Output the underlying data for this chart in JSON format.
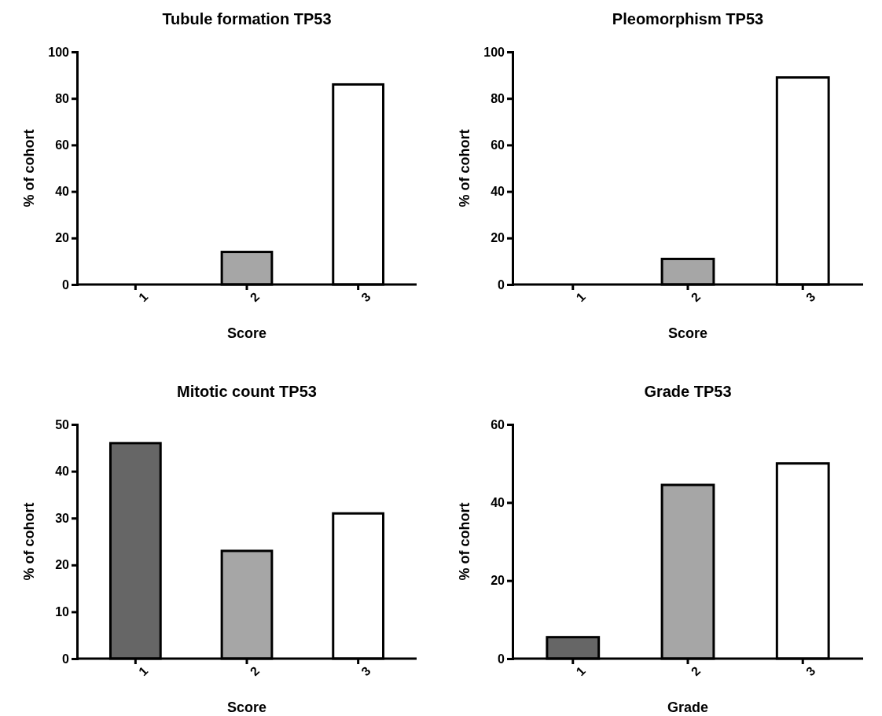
{
  "chart_data": [
    {
      "type": "bar",
      "title": "Tubule formation TP53",
      "xlabel": "Score",
      "ylabel": "% of cohort",
      "categories": [
        "1",
        "2",
        "3"
      ],
      "values": [
        0,
        14,
        86
      ],
      "colors": [
        "#666666",
        "#a6a6a6",
        "#ffffff"
      ],
      "ylim": [
        0,
        100
      ],
      "yticks": [
        0,
        20,
        40,
        60,
        80,
        100
      ]
    },
    {
      "type": "bar",
      "title": "Pleomorphism TP53",
      "xlabel": "Score",
      "ylabel": "% of cohort",
      "categories": [
        "1",
        "2",
        "3"
      ],
      "values": [
        0,
        11,
        89
      ],
      "colors": [
        "#666666",
        "#a6a6a6",
        "#ffffff"
      ],
      "ylim": [
        0,
        100
      ],
      "yticks": [
        0,
        20,
        40,
        60,
        80,
        100
      ]
    },
    {
      "type": "bar",
      "title": "Mitotic count TP53",
      "xlabel": "Score",
      "ylabel": "% of cohort",
      "categories": [
        "1",
        "2",
        "3"
      ],
      "values": [
        46,
        23,
        31
      ],
      "colors": [
        "#666666",
        "#a6a6a6",
        "#ffffff"
      ],
      "ylim": [
        0,
        50
      ],
      "yticks": [
        0,
        10,
        20,
        30,
        40,
        50
      ]
    },
    {
      "type": "bar",
      "title": "Grade TP53",
      "xlabel": "Grade",
      "ylabel": "% of cohort",
      "categories": [
        "1",
        "2",
        "3"
      ],
      "values": [
        5.5,
        44.5,
        50
      ],
      "colors": [
        "#666666",
        "#a6a6a6",
        "#ffffff"
      ],
      "ylim": [
        0,
        60
      ],
      "yticks": [
        0,
        20,
        40,
        60
      ]
    }
  ]
}
